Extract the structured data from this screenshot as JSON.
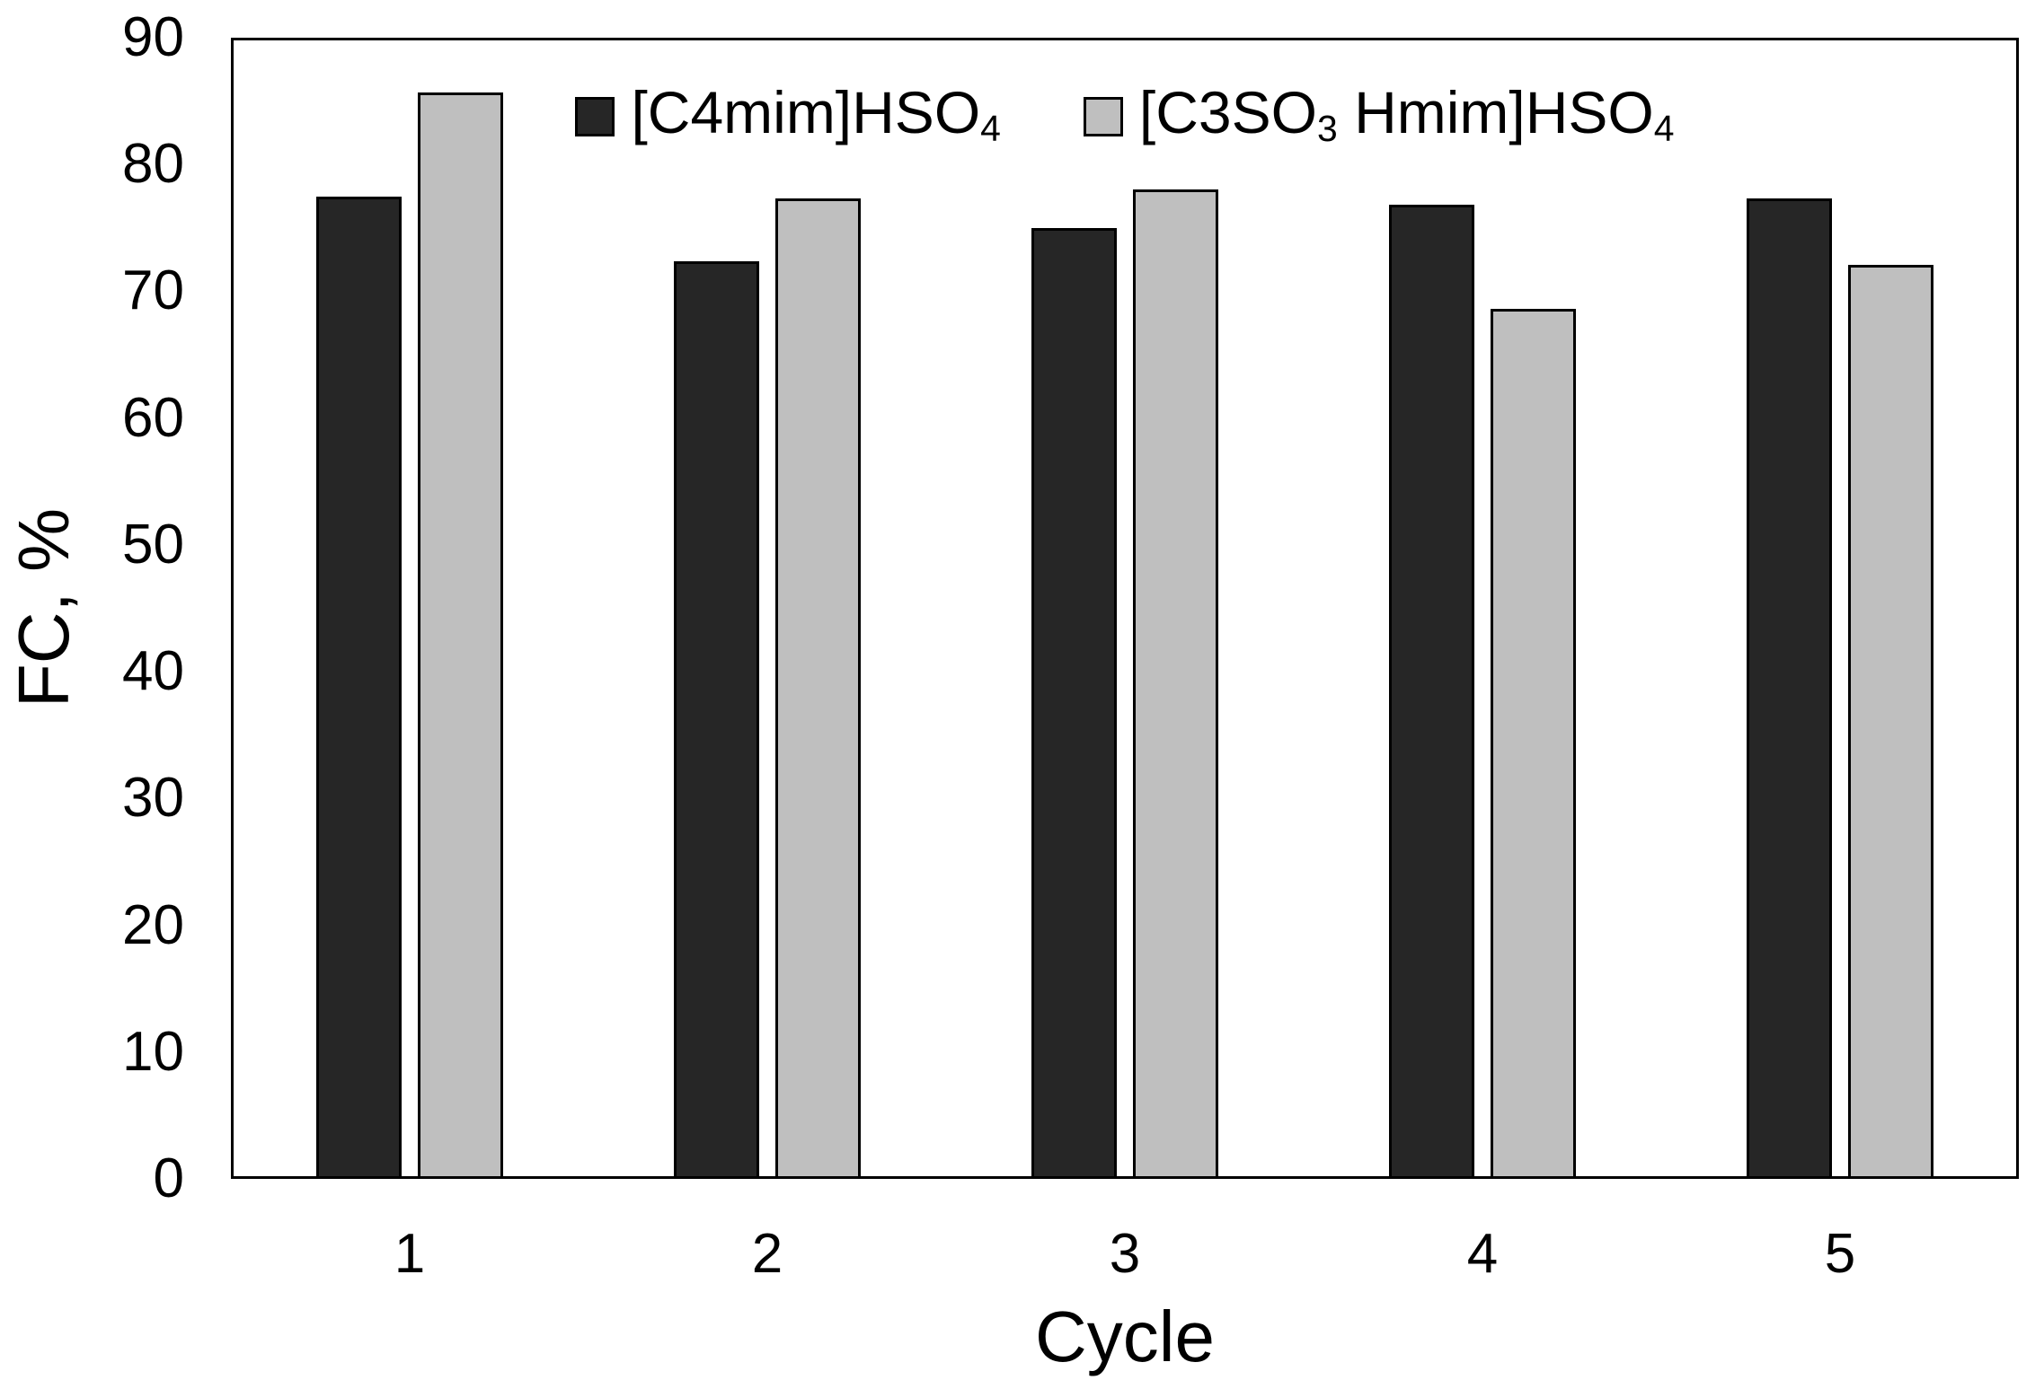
{
  "chart_data": {
    "type": "bar",
    "title": "",
    "xlabel": "Cycle",
    "ylabel": "FC, %",
    "categories": [
      "1",
      "2",
      "3",
      "4",
      "5"
    ],
    "series": [
      {
        "name": "[C4mim]HSO4",
        "label_parts": [
          {
            "text": "[C4mim]HSO",
            "subscript": false
          },
          {
            "text": "4",
            "subscript": true
          }
        ],
        "color": "#262626",
        "values": [
          77.5,
          72.4,
          75.0,
          76.8,
          77.3
        ]
      },
      {
        "name": "[C3SO3 Hmim]HSO4",
        "label_parts": [
          {
            "text": "[C3SO",
            "subscript": false
          },
          {
            "text": "3",
            "subscript": true
          },
          {
            "text": " Hmim]HSO",
            "subscript": false
          },
          {
            "text": "4",
            "subscript": true
          }
        ],
        "color": "#bfbfbf",
        "values": [
          85.7,
          77.3,
          78.0,
          68.6,
          72.1
        ]
      }
    ],
    "ylim": [
      0,
      90
    ],
    "ytick_step": 10,
    "yticks": [
      0,
      10,
      20,
      30,
      40,
      50,
      60,
      70,
      80,
      90
    ],
    "grid": false,
    "legend_position": "top-center",
    "bar_border_color": "#000000",
    "axis_color": "#000000",
    "plot_background": "#ffffff"
  }
}
